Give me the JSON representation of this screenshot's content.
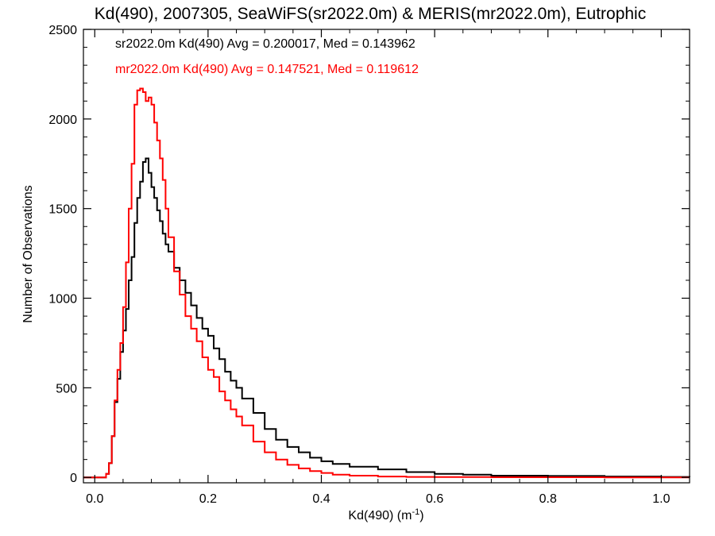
{
  "chart_data": {
    "type": "line",
    "title": "Kd(490), 2007305, SeaWiFS(sr2022.0m) & MERIS(mr2022.0m), Eutrophic",
    "xlabel_main": "Kd(490) (m",
    "xlabel_sup": "-1",
    "xlabel_end": ")",
    "ylabel": "Number of Observations",
    "xlim": [
      -0.02,
      1.05
    ],
    "ylim": [
      -30,
      2500
    ],
    "x_ticks": [
      0.0,
      0.2,
      0.4,
      0.6,
      0.8,
      1.0
    ],
    "x_tick_labels": [
      "0.0",
      "0.2",
      "0.4",
      "0.6",
      "0.8",
      "1.0"
    ],
    "y_ticks": [
      0,
      500,
      1000,
      1500,
      2000,
      2500
    ],
    "y_tick_labels": [
      "0",
      "500",
      "1000",
      "1500",
      "2000",
      "2500"
    ],
    "legend_placement": "top-left",
    "series": [
      {
        "legend": "sr2022.0m Kd(490) Avg = 0.200017, Med = 0.143962",
        "color": "#000000",
        "x": [
          -0.02,
          0.0,
          0.02,
          0.025,
          0.03,
          0.035,
          0.04,
          0.045,
          0.05,
          0.055,
          0.06,
          0.065,
          0.07,
          0.075,
          0.08,
          0.085,
          0.09,
          0.095,
          0.1,
          0.105,
          0.11,
          0.115,
          0.12,
          0.125,
          0.13,
          0.14,
          0.15,
          0.16,
          0.17,
          0.18,
          0.19,
          0.2,
          0.21,
          0.22,
          0.23,
          0.24,
          0.25,
          0.26,
          0.28,
          0.3,
          0.32,
          0.34,
          0.36,
          0.38,
          0.4,
          0.42,
          0.45,
          0.5,
          0.55,
          0.6,
          0.65,
          0.7,
          0.8,
          0.9,
          1.0,
          1.05
        ],
        "y": [
          0,
          0,
          20,
          80,
          230,
          420,
          550,
          700,
          820,
          940,
          1100,
          1230,
          1420,
          1560,
          1650,
          1760,
          1780,
          1700,
          1620,
          1560,
          1490,
          1430,
          1360,
          1300,
          1260,
          1170,
          1100,
          1030,
          960,
          890,
          830,
          790,
          720,
          660,
          590,
          540,
          500,
          440,
          360,
          270,
          210,
          170,
          140,
          110,
          90,
          75,
          60,
          45,
          30,
          20,
          15,
          10,
          8,
          5,
          3,
          2
        ]
      },
      {
        "legend": "mr2022.0m Kd(490) Avg = 0.147521, Med = 0.119612",
        "color": "#ff0000",
        "x": [
          -0.02,
          0.0,
          0.02,
          0.025,
          0.03,
          0.035,
          0.04,
          0.045,
          0.05,
          0.055,
          0.06,
          0.065,
          0.07,
          0.075,
          0.08,
          0.085,
          0.09,
          0.095,
          0.1,
          0.105,
          0.11,
          0.115,
          0.12,
          0.125,
          0.13,
          0.14,
          0.15,
          0.16,
          0.17,
          0.18,
          0.19,
          0.2,
          0.21,
          0.22,
          0.23,
          0.24,
          0.25,
          0.26,
          0.28,
          0.3,
          0.32,
          0.34,
          0.36,
          0.38,
          0.4,
          0.42,
          0.45,
          0.5,
          0.55,
          0.6,
          0.7,
          0.8,
          0.9,
          1.0,
          1.05
        ],
        "y": [
          0,
          0,
          20,
          80,
          230,
          430,
          600,
          750,
          950,
          1200,
          1500,
          1750,
          2080,
          2160,
          2170,
          2150,
          2100,
          2120,
          2080,
          1980,
          1880,
          1780,
          1660,
          1500,
          1340,
          1150,
          1020,
          900,
          830,
          760,
          670,
          600,
          560,
          480,
          430,
          380,
          340,
          290,
          200,
          140,
          100,
          70,
          50,
          35,
          25,
          15,
          10,
          5,
          3,
          2,
          1,
          1,
          0,
          0,
          0
        ]
      }
    ]
  }
}
